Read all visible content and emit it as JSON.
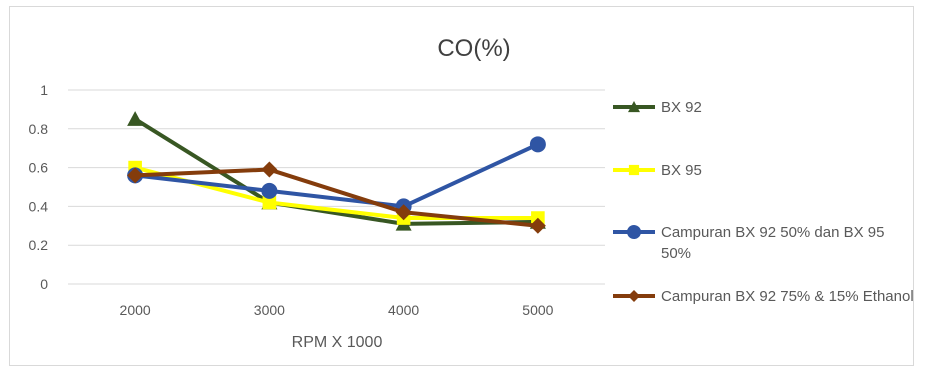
{
  "chart_data": {
    "type": "line",
    "title": "CO(%)",
    "xlabel": "RPM X 1000",
    "ylabel": "",
    "categories": [
      "2000",
      "3000",
      "4000",
      "5000"
    ],
    "ylim": [
      0,
      1
    ],
    "yticks": [
      "0",
      "0.2",
      "0.4",
      "0.6",
      "0.8",
      "1"
    ],
    "grid": "horizontal",
    "legend_position": "right",
    "series": [
      {
        "name": "BX 92",
        "values": [
          0.85,
          0.42,
          0.31,
          0.32
        ],
        "color": "#385723",
        "marker": "triangle"
      },
      {
        "name": "BX 95",
        "values": [
          0.6,
          0.42,
          0.34,
          0.34
        ],
        "color": "#ffff00",
        "marker": "square"
      },
      {
        "name": "Campuran BX 92 50% dan BX 95 50%",
        "values": [
          0.56,
          0.48,
          0.4,
          0.72
        ],
        "color": "#2f55a4",
        "marker": "circle"
      },
      {
        "name": "Campuran BX 92 75% & 15% Ethanol",
        "values": [
          0.56,
          0.59,
          0.37,
          0.3
        ],
        "color": "#843c0c",
        "marker": "diamond"
      }
    ]
  }
}
